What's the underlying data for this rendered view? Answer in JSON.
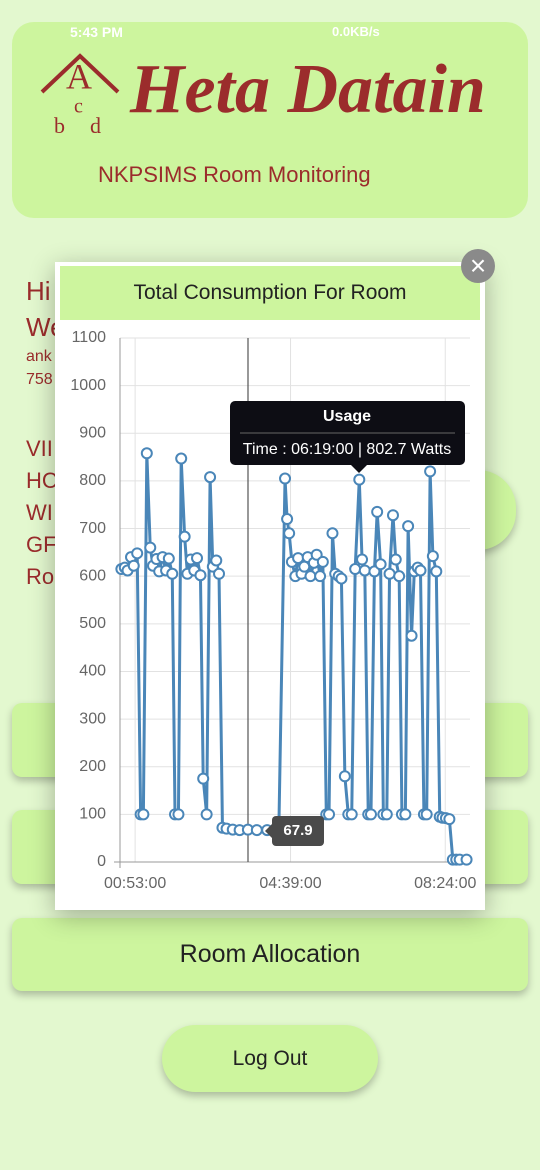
{
  "status_bar": {
    "time": "5:43 PM",
    "speed": "0.0KB/s"
  },
  "header": {
    "logo": [
      "A",
      "c",
      "b",
      "d"
    ],
    "title": "Heta Datain",
    "subtitle": "NKPSIMS Room Monitoring"
  },
  "background_text": [
    "Hi",
    "We",
    "ank",
    "758",
    "VII",
    "HC",
    "WI",
    "GF",
    "Ro"
  ],
  "buttons": [
    "Room Allocation",
    "Log Out"
  ],
  "chart_data": {
    "type": "line",
    "title": "Total Consumption For Room",
    "x": [
      "00:33:00",
      "00:38:00",
      "00:42:00",
      "00:47:00",
      "00:51:00",
      "00:56:00",
      "01:01:00",
      "01:05:00",
      "01:10:00",
      "01:15:00",
      "01:19:00",
      "01:24:00",
      "01:28:00",
      "01:33:00",
      "01:38:00",
      "01:42:00",
      "01:47:00",
      "01:51:00",
      "01:56:00",
      "02:00:00",
      "02:05:00",
      "02:09:00",
      "02:14:00",
      "02:19:00",
      "02:23:00",
      "02:28:00",
      "02:32:00",
      "02:37:00",
      "02:42:00",
      "02:46:00",
      "02:51:00",
      "02:55:00",
      "03:00:00",
      "03:06:00",
      "03:15:00",
      "03:25:00",
      "03:37:00",
      "03:50:00",
      "04:05:00",
      "04:22:00",
      "04:31:00",
      "04:34:00",
      "04:37:00",
      "04:41:00",
      "04:46:00",
      "04:50:00",
      "04:55:00",
      "04:59:00",
      "05:04:00",
      "05:08:00",
      "05:13:00",
      "05:17:00",
      "05:22:00",
      "05:26:00",
      "05:31:00",
      "05:35:00",
      "05:40:00",
      "05:44:00",
      "05:49:00",
      "05:53:00",
      "05:58:00",
      "06:03:00",
      "06:08:00",
      "06:13:00",
      "06:19:00",
      "06:23:00",
      "06:27:00",
      "06:32:00",
      "06:36:00",
      "06:41:00",
      "06:45:00",
      "06:50:00",
      "06:54:00",
      "06:59:00",
      "07:03:00",
      "07:08:00",
      "07:12:00",
      "07:17:00",
      "07:21:00",
      "07:26:00",
      "07:30:00",
      "07:35:00",
      "07:39:00",
      "07:44:00",
      "07:48:00",
      "07:53:00",
      "07:57:00",
      "08:02:00",
      "08:06:00",
      "08:11:00",
      "08:16:00",
      "08:20:00",
      "08:25:00",
      "08:30:00",
      "08:35:00",
      "08:40:00",
      "08:45:00",
      "08:55:00"
    ],
    "series": [
      {
        "name": "Usage",
        "color": "#4a86b8",
        "values": [
          615,
          618,
          612,
          640,
          622,
          648,
          100,
          100,
          858,
          660,
          622,
          636,
          610,
          640,
          612,
          637,
          605,
          100,
          100,
          847,
          683,
          605,
          635,
          612,
          638,
          602,
          175,
          100,
          808,
          620,
          633,
          605,
          72,
          70,
          68,
          67,
          67.9,
          67,
          67,
          68,
          805,
          720,
          690,
          630,
          600,
          638,
          605,
          620,
          640,
          600,
          628,
          645,
          600,
          630,
          100,
          100,
          690,
          605,
          600,
          595,
          180,
          100,
          100,
          615,
          802.7,
          635,
          612,
          100,
          100,
          610,
          735,
          625,
          100,
          100,
          605,
          728,
          635,
          600,
          100,
          100,
          705,
          475,
          610,
          618,
          612,
          100,
          100,
          820,
          642,
          610,
          95,
          93,
          92,
          90,
          5,
          5,
          5,
          5
        ]
      }
    ],
    "xlim": [
      "00:31:00",
      "09:00:00"
    ],
    "xticks": [
      "00:53:00",
      "04:39:00",
      "08:24:00"
    ],
    "ylim": [
      0,
      1100
    ],
    "yticks": [
      0,
      100,
      200,
      300,
      400,
      500,
      600,
      700,
      800,
      900,
      1000,
      1100
    ],
    "grid": true,
    "tooltip": "Time : 06:19:00 | 802.7 Watts"
  }
}
